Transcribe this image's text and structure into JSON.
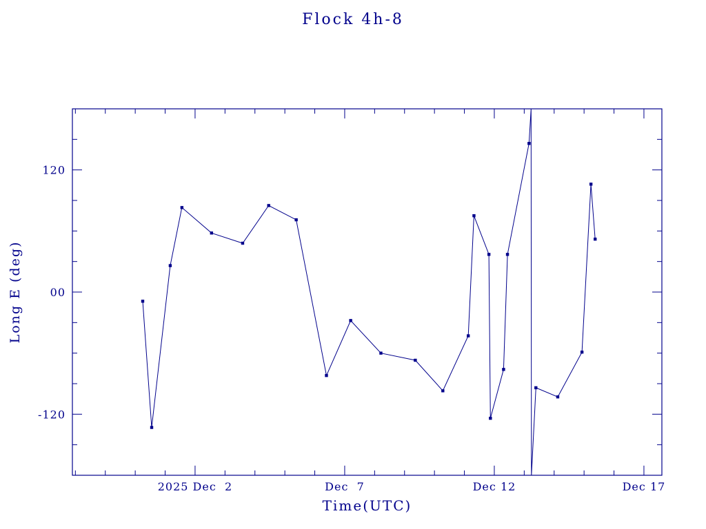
{
  "colors": {
    "accent": "#00008b",
    "background": "#ffffff"
  },
  "chart_data": {
    "type": "line",
    "title": "Flock 4h-8",
    "xlabel": "Time(UTC)",
    "ylabel": "Long E (deg)",
    "legend": null,
    "grid": false,
    "line_color": "#00008b",
    "text_color": "#00008b",
    "marker": "square",
    "xlim": [
      -2.1,
      17.6
    ],
    "ylim": [
      -180,
      180
    ],
    "x_minor_step": 1,
    "y_minor_step": 30,
    "x_major_ticks": [
      {
        "t": 2,
        "label": "2025 Dec  2"
      },
      {
        "t": 7,
        "label": "Dec  7"
      },
      {
        "t": 12,
        "label": "Dec 12"
      },
      {
        "t": 17,
        "label": "Dec 17"
      }
    ],
    "y_major_ticks": [
      {
        "v": 120,
        "label": "120"
      },
      {
        "v": 0,
        "label": "00"
      },
      {
        "v": -120,
        "label": "-120"
      }
    ],
    "points_note": "t = day of December 2025 UTC (Nov 30 = 0); deg = East longitude; third value 1 = plotted marker, 0 = longitude wrap helper point",
    "points": [
      [
        0.25,
        -9,
        1
      ],
      [
        0.55,
        -133,
        1
      ],
      [
        1.17,
        26,
        1
      ],
      [
        1.56,
        83,
        1
      ],
      [
        2.55,
        58,
        1
      ],
      [
        3.59,
        48,
        1
      ],
      [
        4.46,
        85,
        1
      ],
      [
        5.38,
        71,
        1
      ],
      [
        6.39,
        -82,
        1
      ],
      [
        7.2,
        -28,
        1
      ],
      [
        8.21,
        -60,
        1
      ],
      [
        9.36,
        -67,
        1
      ],
      [
        10.28,
        -97,
        1
      ],
      [
        11.13,
        -43,
        1
      ],
      [
        11.32,
        75,
        1
      ],
      [
        11.82,
        37,
        1
      ],
      [
        11.87,
        -124,
        1
      ],
      [
        12.31,
        -76,
        1
      ],
      [
        12.44,
        37,
        1
      ],
      [
        13.16,
        146,
        1
      ],
      [
        13.23,
        180,
        0
      ],
      [
        13.24,
        -180,
        0
      ],
      [
        13.39,
        -94,
        1
      ],
      [
        14.12,
        -103,
        1
      ],
      [
        14.93,
        -59,
        1
      ],
      [
        15.23,
        106,
        1
      ],
      [
        15.37,
        52,
        1
      ]
    ]
  }
}
